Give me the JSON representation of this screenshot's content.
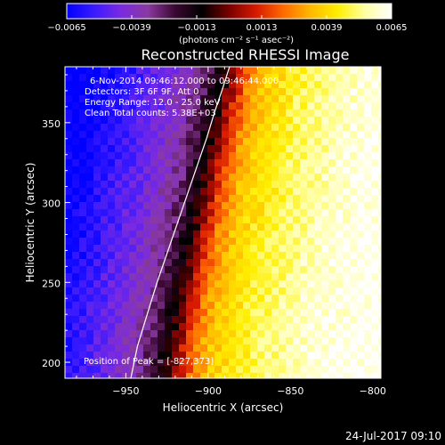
{
  "chart_data": {
    "type": "heatmap",
    "title": "Reconstructed RHESSI Image",
    "xlabel": "Heliocentric X (arcsec)",
    "ylabel": "Heliocentric Y (arcsec)",
    "xlim": [
      -987,
      -795
    ],
    "ylim": [
      190,
      385
    ],
    "x_ticks": [
      -950,
      -900,
      -850,
      -800
    ],
    "x_tick_labels": [
      "−950",
      "−900",
      "−850",
      "−800"
    ],
    "y_ticks": [
      200,
      250,
      300,
      350
    ],
    "y_tick_labels": [
      "200",
      "250",
      "300",
      "350"
    ],
    "colorbar": {
      "range": [
        -0.0065,
        0.0065
      ],
      "ticks": [
        -0.0065,
        -0.0039,
        -0.0013,
        0.0013,
        0.0039,
        0.0065
      ],
      "tick_labels": [
        "−0.0065",
        "−0.0039",
        "−0.0013",
        "0.0013",
        "0.0039",
        "0.0065"
      ],
      "units_label": "(photons cm⁻² s⁻¹ asec⁻²)",
      "colormap": [
        "#0000ff",
        "#3a1aff",
        "#7a2ae0",
        "#8a3aa0",
        "#3a0830",
        "#000000",
        "#7a0000",
        "#d81a00",
        "#ff6a00",
        "#ffb800",
        "#ffee00",
        "#ffffa0",
        "#ffffff"
      ]
    },
    "annotations": [
      "6-Nov-2014 09:46:12.000 to 09:46:44.000",
      "Detectors: 3F 6F 9F, Att 0",
      "Energy Range: 12.0 - 25.0 keV",
      "Clean     Total counts: 5.38E+03"
    ],
    "peak_label": "Position of Peak = [-827,373]",
    "limb_curve": {
      "x": [
        -947,
        -943,
        -937,
        -931,
        -925,
        -919,
        -913,
        -907,
        -901,
        -896,
        -891,
        -887
      ],
      "y": [
        190,
        210,
        230,
        250,
        268,
        286,
        304,
        322,
        340,
        357,
        372,
        385
      ]
    },
    "intensity_profile": {
      "x": [
        -987,
        -975,
        -965,
        -955,
        -945,
        -935,
        -925,
        -918,
        -912,
        -906,
        -901,
        -896,
        -890,
        -882,
        -872,
        -860,
        -845,
        -830,
        -815,
        -795
      ],
      "value": [
        -0.0065,
        -0.006,
        -0.0055,
        -0.005,
        -0.0045,
        -0.0038,
        -0.0032,
        -0.0024,
        -0.0013,
        -0.0003,
        0.0008,
        0.0018,
        0.0028,
        0.0036,
        0.0042,
        0.0048,
        0.0053,
        0.0058,
        0.0061,
        0.0064
      ]
    },
    "grid": false,
    "legend": "none"
  },
  "footer": {
    "date": "24-Jul-2017 09:10"
  }
}
